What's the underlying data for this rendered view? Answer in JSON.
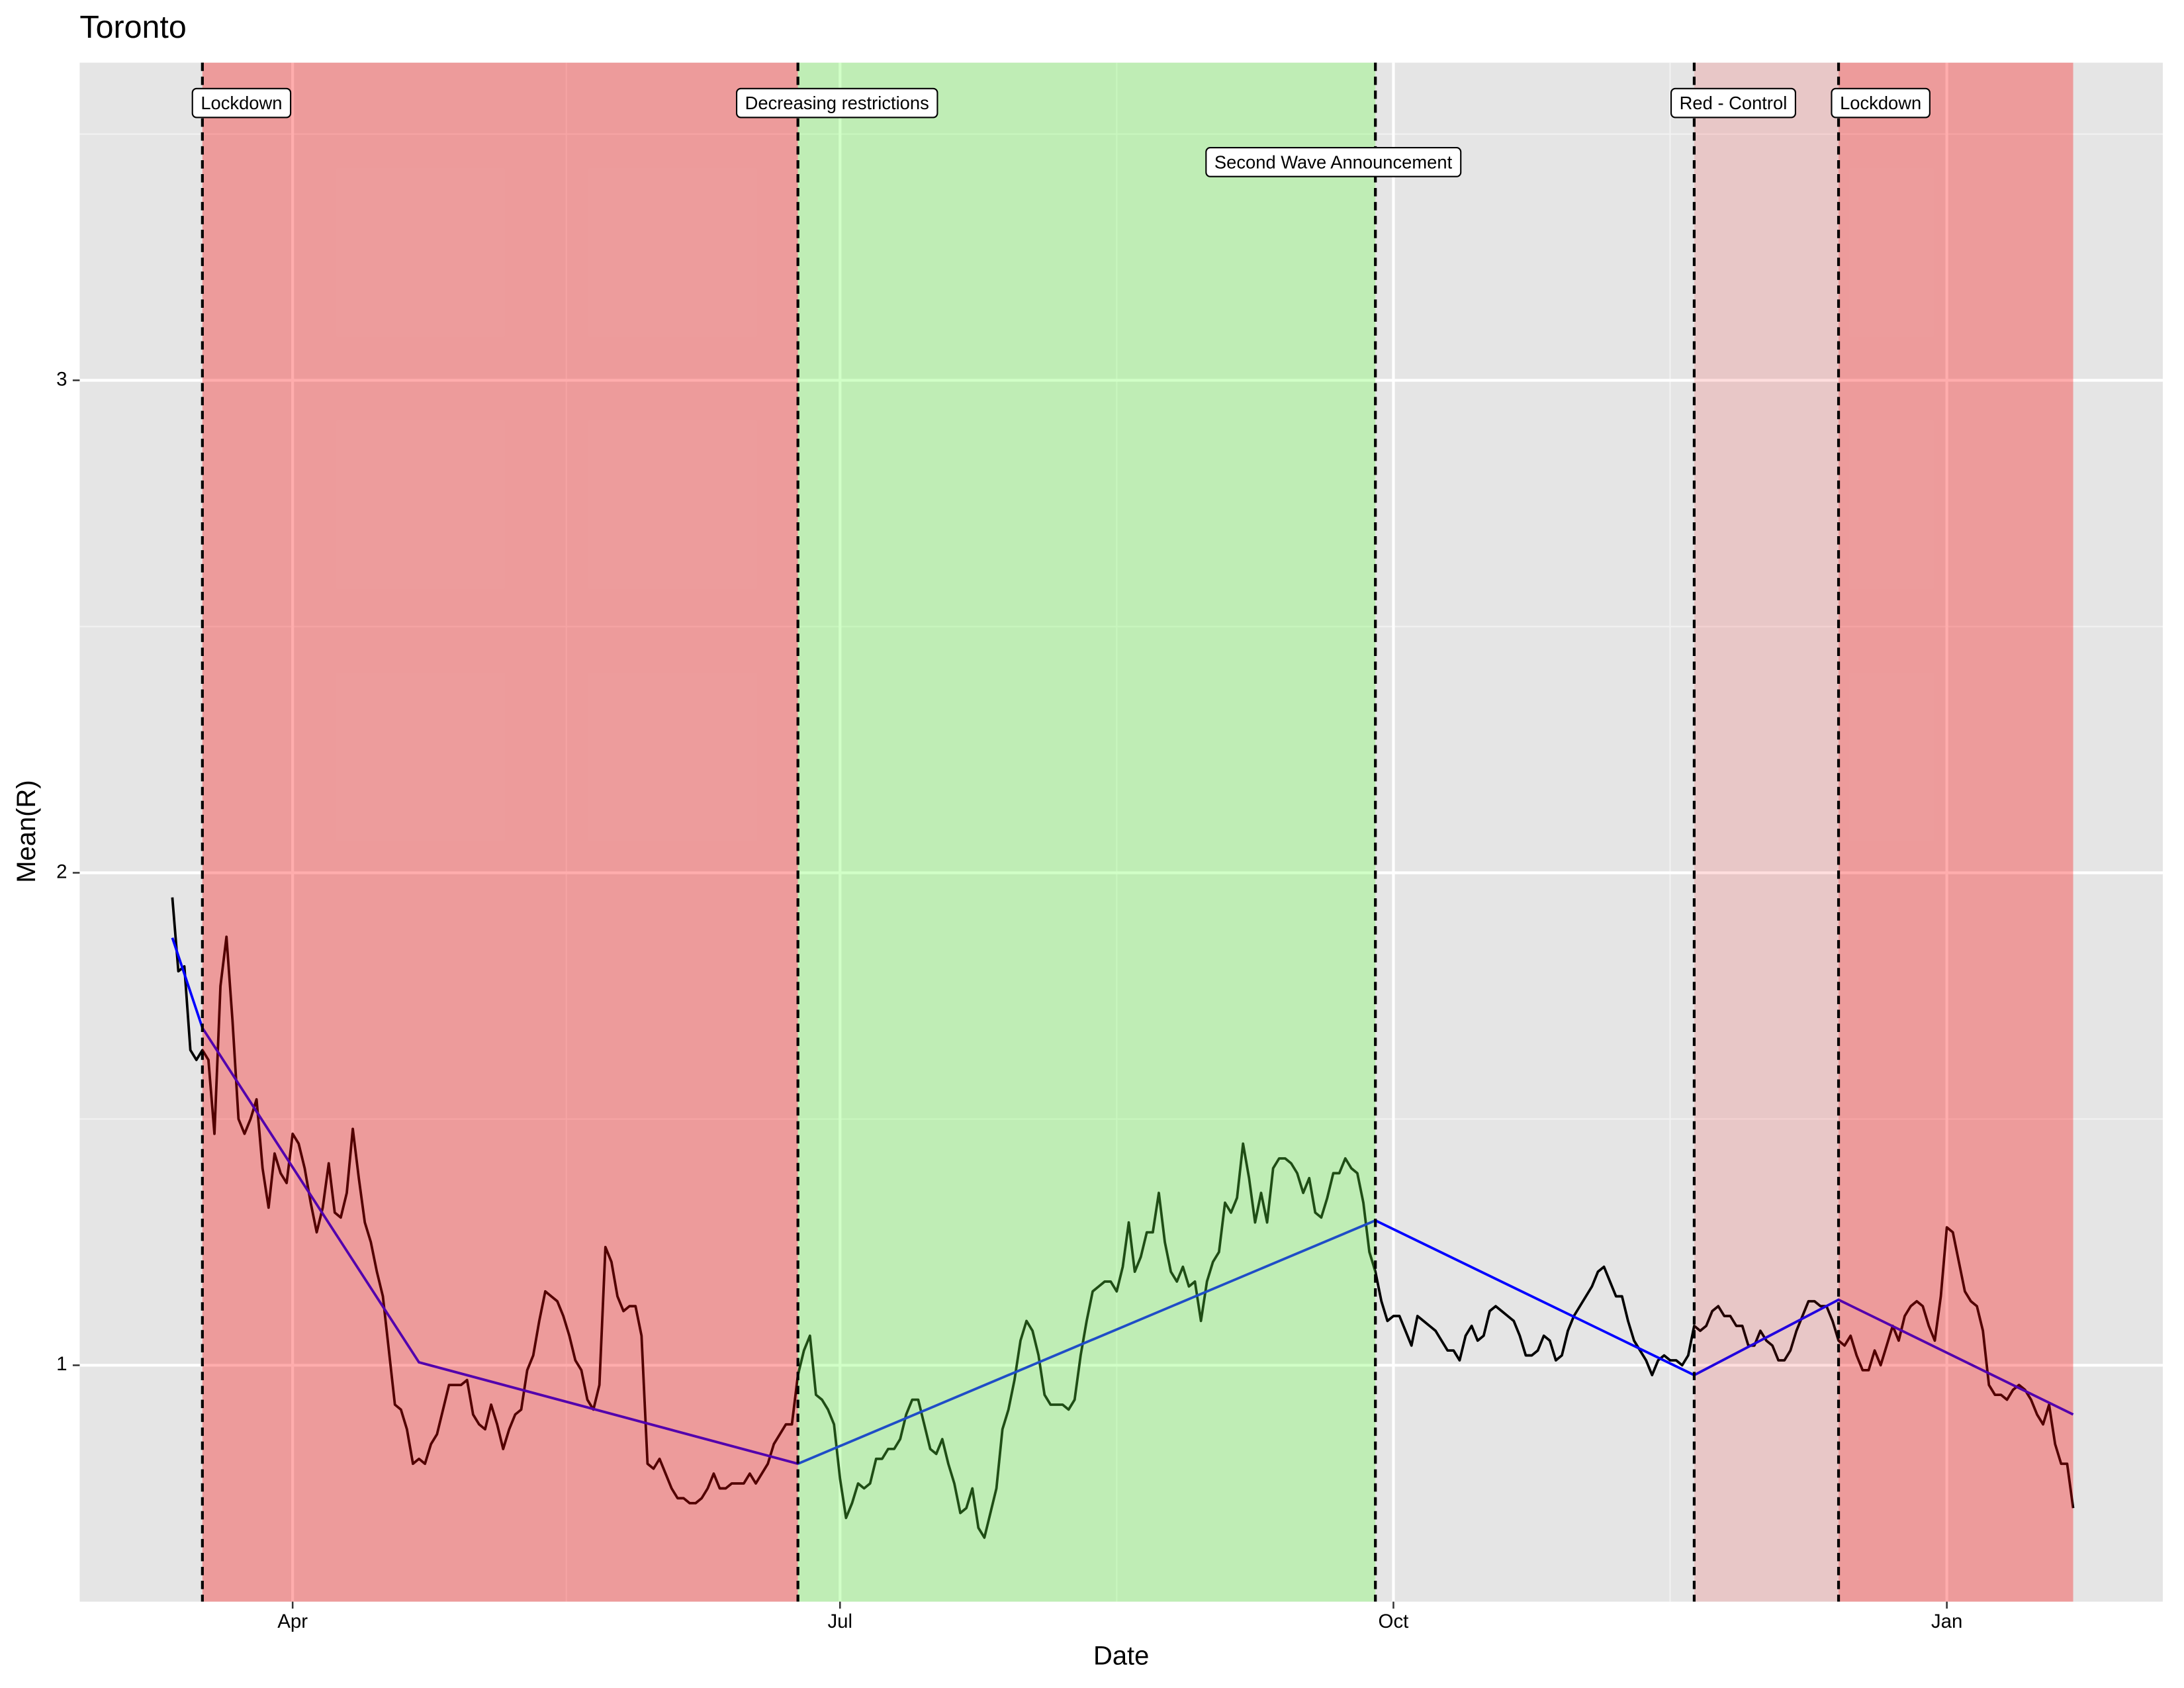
{
  "chart_data": {
    "type": "line",
    "title": "Toronto",
    "x_label": "Date",
    "y_label": "Mean(R)",
    "xlim": [
      -4.4,
      341.9
    ],
    "ylim": [
      0.52,
      3.645
    ],
    "xticks": [
      {
        "value": 31,
        "label": "Apr"
      },
      {
        "value": 122,
        "label": "Jul"
      },
      {
        "value": 214,
        "label": "Oct"
      },
      {
        "value": 306,
        "label": "Jan"
      }
    ],
    "yticks": [
      1,
      2,
      3
    ],
    "x_minor": [
      76.5,
      168,
      260
    ],
    "y_minor": [
      1.5,
      2.5,
      3.5
    ],
    "grid": true,
    "x": [
      11,
      12,
      13,
      14,
      15,
      16,
      17,
      18,
      19,
      20,
      21,
      22,
      23,
      24,
      25,
      26,
      27,
      28,
      29,
      30,
      31,
      32,
      33,
      34,
      35,
      36,
      37,
      38,
      39,
      40,
      41,
      42,
      43,
      44,
      45,
      46,
      47,
      48,
      49,
      50,
      51,
      52,
      53,
      54,
      55,
      56,
      57,
      58,
      59,
      60,
      61,
      62,
      63,
      64,
      65,
      66,
      67,
      68,
      69,
      70,
      71,
      72,
      73,
      74,
      75,
      76,
      77,
      78,
      79,
      80,
      81,
      82,
      83,
      84,
      85,
      86,
      87,
      88,
      89,
      90,
      91,
      92,
      93,
      94,
      95,
      96,
      97,
      98,
      99,
      100,
      101,
      102,
      103,
      104,
      105,
      106,
      107,
      108,
      109,
      110,
      111,
      112,
      113,
      114,
      115,
      116,
      117,
      118,
      119,
      120,
      121,
      122,
      123,
      124,
      125,
      126,
      127,
      128,
      129,
      130,
      131,
      132,
      133,
      134,
      135,
      136,
      137,
      138,
      139,
      140,
      141,
      142,
      143,
      144,
      145,
      146,
      147,
      148,
      149,
      150,
      151,
      152,
      153,
      154,
      155,
      156,
      157,
      158,
      159,
      160,
      161,
      162,
      163,
      164,
      165,
      166,
      167,
      168,
      169,
      170,
      171,
      172,
      173,
      174,
      175,
      176,
      177,
      178,
      179,
      180,
      181,
      182,
      183,
      184,
      185,
      186,
      187,
      188,
      189,
      190,
      191,
      192,
      193,
      194,
      195,
      196,
      197,
      198,
      199,
      200,
      201,
      202,
      203,
      204,
      205,
      206,
      207,
      208,
      209,
      210,
      211,
      212,
      213,
      214,
      215,
      216,
      217,
      218,
      219,
      220,
      221,
      222,
      223,
      224,
      225,
      226,
      227,
      228,
      229,
      230,
      231,
      232,
      233,
      234,
      235,
      236,
      237,
      238,
      239,
      240,
      241,
      242,
      243,
      244,
      245,
      246,
      247,
      248,
      249,
      250,
      251,
      252,
      253,
      254,
      255,
      256,
      257,
      258,
      259,
      260,
      261,
      262,
      263,
      264,
      265,
      266,
      267,
      268,
      269,
      270,
      271,
      272,
      273,
      274,
      275,
      276,
      277,
      278,
      279,
      280,
      281,
      282,
      283,
      284,
      285,
      286,
      287,
      288,
      289,
      290,
      291,
      292,
      293,
      294,
      295,
      296,
      297,
      298,
      299,
      300,
      301,
      302,
      303,
      304,
      305,
      306,
      307,
      308,
      309,
      310,
      311,
      312,
      313,
      314,
      315,
      316,
      317,
      318,
      319,
      320,
      321,
      322,
      323,
      324,
      325,
      326,
      327
    ],
    "series": [
      {
        "color": "#000000",
        "values": [
          1.95,
          1.8,
          1.81,
          1.64,
          1.62,
          1.64,
          1.62,
          1.47,
          1.77,
          1.87,
          1.7,
          1.5,
          1.47,
          1.5,
          1.54,
          1.4,
          1.32,
          1.43,
          1.39,
          1.37,
          1.47,
          1.45,
          1.4,
          1.33,
          1.27,
          1.32,
          1.41,
          1.31,
          1.3,
          1.35,
          1.48,
          1.38,
          1.29,
          1.25,
          1.19,
          1.14,
          1.03,
          0.92,
          0.91,
          0.87,
          0.8,
          0.81,
          0.8,
          0.84,
          0.86,
          0.91,
          0.96,
          0.96,
          0.96,
          0.97,
          0.9,
          0.88,
          0.87,
          0.92,
          0.88,
          0.83,
          0.87,
          0.9,
          0.91,
          0.99,
          1.02,
          1.09,
          1.15,
          1.14,
          1.13,
          1.1,
          1.06,
          1.01,
          0.99,
          0.93,
          0.91,
          0.96,
          1.24,
          1.21,
          1.14,
          1.11,
          1.12,
          1.12,
          1.06,
          0.8,
          0.79,
          0.81,
          0.78,
          0.75,
          0.73,
          0.73,
          0.72,
          0.72,
          0.73,
          0.75,
          0.78,
          0.75,
          0.75,
          0.76,
          0.76,
          0.76,
          0.78,
          0.76,
          0.78,
          0.8,
          0.84,
          0.86,
          0.88,
          0.88,
          0.98,
          1.03,
          1.06,
          0.94,
          0.93,
          0.91,
          0.88,
          0.77,
          0.69,
          0.72,
          0.76,
          0.75,
          0.76,
          0.81,
          0.81,
          0.83,
          0.83,
          0.85,
          0.9,
          0.93,
          0.93,
          0.88,
          0.83,
          0.82,
          0.85,
          0.8,
          0.76,
          0.7,
          0.71,
          0.75,
          0.67,
          0.65,
          0.7,
          0.75,
          0.87,
          0.91,
          0.97,
          1.05,
          1.09,
          1.07,
          1.02,
          0.94,
          0.92,
          0.92,
          0.92,
          0.91,
          0.93,
          1.02,
          1.09,
          1.15,
          1.16,
          1.17,
          1.17,
          1.15,
          1.2,
          1.29,
          1.19,
          1.22,
          1.27,
          1.27,
          1.35,
          1.25,
          1.19,
          1.17,
          1.2,
          1.16,
          1.17,
          1.09,
          1.17,
          1.21,
          1.23,
          1.33,
          1.31,
          1.34,
          1.45,
          1.38,
          1.29,
          1.35,
          1.29,
          1.4,
          1.42,
          1.42,
          1.41,
          1.39,
          1.35,
          1.38,
          1.31,
          1.3,
          1.34,
          1.39,
          1.39,
          1.42,
          1.4,
          1.39,
          1.33,
          1.23,
          1.19,
          1.13,
          1.09,
          1.1,
          1.1,
          1.07,
          1.04,
          1.1,
          1.09,
          1.08,
          1.07,
          1.05,
          1.03,
          1.03,
          1.01,
          1.06,
          1.08,
          1.05,
          1.06,
          1.11,
          1.12,
          1.11,
          1.1,
          1.09,
          1.06,
          1.02,
          1.02,
          1.03,
          1.06,
          1.05,
          1.01,
          1.02,
          1.07,
          1.1,
          1.12,
          1.14,
          1.16,
          1.19,
          1.2,
          1.17,
          1.14,
          1.14,
          1.09,
          1.05,
          1.03,
          1.01,
          0.98,
          1.01,
          1.02,
          1.01,
          1.01,
          1.0,
          1.02,
          1.08,
          1.07,
          1.08,
          1.11,
          1.12,
          1.1,
          1.1,
          1.08,
          1.08,
          1.04,
          1.04,
          1.07,
          1.05,
          1.04,
          1.01,
          1.01,
          1.03,
          1.07,
          1.1,
          1.13,
          1.13,
          1.12,
          1.12,
          1.09,
          1.05,
          1.04,
          1.06,
          1.02,
          0.99,
          0.99,
          1.03,
          1.0,
          1.04,
          1.08,
          1.05,
          1.1,
          1.12,
          1.13,
          1.12,
          1.08,
          1.05,
          1.14,
          1.28,
          1.27,
          1.21,
          1.15,
          1.13,
          1.12,
          1.07,
          0.96,
          0.94,
          0.94,
          0.93,
          0.95,
          0.96,
          0.95,
          0.93,
          0.9,
          0.88,
          0.92,
          0.84,
          0.8,
          0.8,
          0.71
        ]
      }
    ],
    "fit": {
      "color": "#0000ff",
      "x": [
        11,
        16,
        52,
        115,
        211,
        264,
        288,
        327
      ],
      "values": [
        1.868,
        1.685,
        1.006,
        0.8,
        1.294,
        0.98,
        1.133,
        0.9
      ]
    },
    "regions": [
      {
        "x": [
          16,
          115
        ],
        "color": "#ff0000",
        "alpha": 0.32
      },
      {
        "x": [
          115,
          211
        ],
        "color": "#66ff44",
        "alpha": 0.3
      },
      {
        "x": [
          264,
          288
        ],
        "color": "#ff0000",
        "alpha": 0.13
      },
      {
        "x": [
          288,
          327
        ],
        "color": "#ff0000",
        "alpha": 0.32
      }
    ],
    "events": [
      {
        "x": 16,
        "label": "Lockdown",
        "label_x": 22.5,
        "label_y": 3.56
      },
      {
        "x": 115,
        "label": "Decreasing restrictions",
        "label_x": 121.5,
        "label_y": 3.56
      },
      {
        "x": 211,
        "label": "Second Wave Announcement",
        "label_x": 204,
        "label_y": 3.44
      },
      {
        "x": 264,
        "label": "Red - Control",
        "label_x": 270.5,
        "label_y": 3.56
      },
      {
        "x": 288,
        "label": "Lockdown",
        "label_x": 295,
        "label_y": 3.56
      }
    ]
  }
}
